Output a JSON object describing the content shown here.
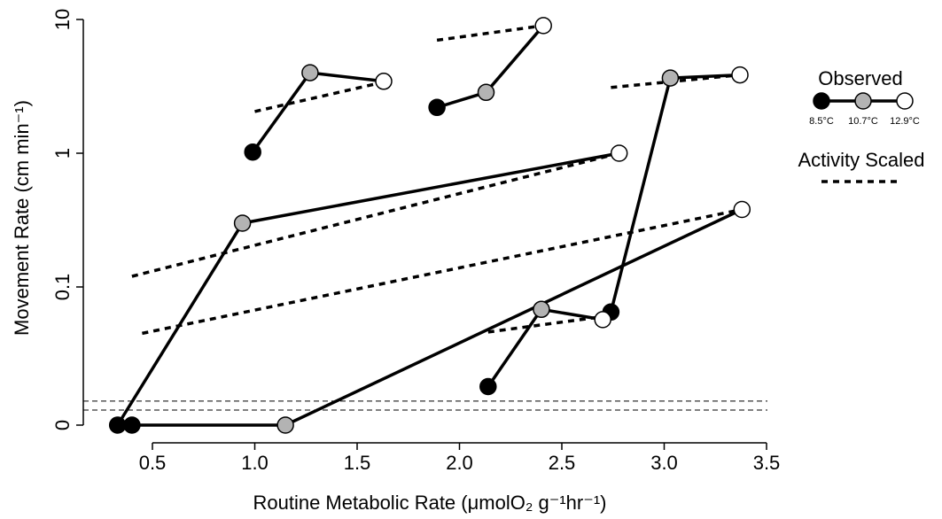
{
  "chart_data": {
    "type": "line",
    "xlabel": "Routine Metabolic Rate (μmolO₂ g⁻¹hr⁻¹)",
    "ylabel": "Movement Rate (cm min⁻¹)",
    "xlim": [
      0.25,
      3.5
    ],
    "y_scale": "log with zero break",
    "x_ticks": [
      "0.5",
      "1.0",
      "1.5",
      "2.0",
      "2.5",
      "3.0",
      "3.5"
    ],
    "x_tick_values": [
      0.5,
      1.0,
      1.5,
      2.0,
      2.5,
      3.0,
      3.5
    ],
    "y_ticks": [
      "0",
      "0.1",
      "1",
      "10"
    ],
    "reference_lines_y": [
      0.014,
      0.012
    ],
    "temperatures": [
      "8.5°C",
      "10.7°C",
      "12.9°C"
    ],
    "colors": {
      "8.5°C": "#000000",
      "10.7°C": "#b3b3b3",
      "12.9°C": "#ffffff"
    },
    "legend": {
      "observed_title": "Observed",
      "scaled_title": "Activity Scaled",
      "placement": "right"
    },
    "observed": [
      {
        "points": [
          [
            0.99,
            1.02
          ],
          [
            1.27,
            4.0
          ],
          [
            1.63,
            3.45
          ]
        ]
      },
      {
        "points": [
          [
            1.89,
            2.2
          ],
          [
            2.13,
            2.85
          ],
          [
            2.41,
            9.0
          ]
        ]
      },
      {
        "points": [
          [
            2.74,
            0.065
          ],
          [
            3.03,
            3.65
          ],
          [
            3.37,
            3.85
          ]
        ]
      },
      {
        "points": [
          [
            0.33,
            0
          ],
          [
            0.94,
            0.3
          ],
          [
            2.78,
            1.0
          ]
        ]
      },
      {
        "points": [
          [
            0.4,
            0
          ],
          [
            1.15,
            0
          ],
          [
            3.38,
            0.38
          ]
        ]
      },
      {
        "points": [
          [
            2.14,
            0.018
          ],
          [
            2.4,
            0.068
          ],
          [
            2.7,
            0.057
          ]
        ]
      }
    ],
    "activity_scaled": [
      {
        "points": [
          [
            1.0,
            2.05
          ],
          [
            1.63,
            3.4
          ]
        ]
      },
      {
        "points": [
          [
            1.89,
            7.0
          ],
          [
            2.41,
            9.0
          ]
        ]
      },
      {
        "points": [
          [
            2.74,
            3.1
          ],
          [
            3.37,
            3.85
          ]
        ]
      },
      {
        "points": [
          [
            0.4,
            0.12
          ],
          [
            2.78,
            1.0
          ]
        ]
      },
      {
        "points": [
          [
            0.45,
            0.045
          ],
          [
            3.38,
            0.38
          ]
        ]
      },
      {
        "points": [
          [
            2.14,
            0.046
          ],
          [
            2.7,
            0.06
          ]
        ]
      }
    ]
  }
}
